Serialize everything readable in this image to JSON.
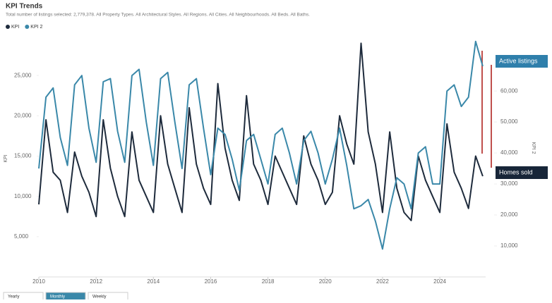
{
  "chart_data": {
    "type": "line",
    "title": "KPI Trends",
    "subtitle": "Total number of listings selected: 2,779,378. All Property Types. All Architectural Styles. All Regions. All Cities. All Neighbourhoods. All Beds. All Baths.",
    "y_label": "KPI",
    "y2_label": "KPI 2",
    "x": [
      2010,
      2010.25,
      2010.5,
      2010.75,
      2011,
      2011.25,
      2011.5,
      2011.75,
      2012,
      2012.25,
      2012.5,
      2012.75,
      2013,
      2013.25,
      2013.5,
      2013.75,
      2014,
      2014.25,
      2014.5,
      2014.75,
      2015,
      2015.25,
      2015.5,
      2015.75,
      2016,
      2016.25,
      2016.5,
      2016.75,
      2017,
      2017.25,
      2017.5,
      2017.75,
      2018,
      2018.25,
      2018.5,
      2018.75,
      2019,
      2019.25,
      2019.5,
      2019.75,
      2020,
      2020.25,
      2020.5,
      2020.75,
      2021,
      2021.25,
      2021.5,
      2021.75,
      2022,
      2022.25,
      2022.5,
      2022.75,
      2023,
      2023.25,
      2023.5,
      2023.75,
      2024,
      2024.25,
      2024.5,
      2024.75,
      2025,
      2025.25,
      2025.5
    ],
    "series": [
      {
        "name": "KPI",
        "color": "#1e2b3c",
        "axis": "y",
        "values": [
          9000,
          19500,
          13000,
          12000,
          8000,
          15500,
          12500,
          10500,
          7500,
          19500,
          13500,
          10000,
          7500,
          18000,
          12000,
          10000,
          8000,
          20000,
          14000,
          11000,
          8000,
          21000,
          14000,
          11000,
          9000,
          24000,
          16000,
          12000,
          9500,
          22500,
          14000,
          12000,
          9000,
          15000,
          13000,
          11000,
          9000,
          17500,
          14000,
          12000,
          9000,
          10500,
          20000,
          16500,
          14000,
          29000,
          18000,
          14000,
          8000,
          18000,
          11000,
          8000,
          7000,
          15000,
          12000,
          10000,
          8000,
          19000,
          13000,
          11000,
          8500,
          15000,
          12500
        ]
      },
      {
        "name": "KPI 2",
        "color": "#3a88a9",
        "axis": "y2",
        "values": [
          35000,
          58000,
          61000,
          45000,
          36000,
          62000,
          65000,
          48000,
          37000,
          63000,
          64000,
          47000,
          37000,
          65000,
          67000,
          50000,
          36000,
          64000,
          66000,
          50000,
          35000,
          62000,
          64000,
          48000,
          33000,
          48000,
          46000,
          38000,
          28000,
          44000,
          46000,
          38000,
          30000,
          46000,
          48000,
          40000,
          30000,
          44000,
          47000,
          40000,
          30000,
          38000,
          48000,
          36000,
          22000,
          23000,
          25000,
          18000,
          9000,
          22000,
          32000,
          30000,
          22000,
          40000,
          42000,
          30000,
          30000,
          60000,
          62000,
          55000,
          58000,
          76000,
          68000
        ]
      }
    ],
    "xlim": [
      2010,
      2025.6
    ],
    "xticks": [
      2010,
      2012,
      2014,
      2016,
      2018,
      2020,
      2022,
      2024
    ],
    "ylim": [
      0,
      30000
    ],
    "yticks": [
      {
        "value": 5000,
        "label": "5,000"
      },
      {
        "value": 10000,
        "label": "10,000"
      },
      {
        "value": 15000,
        "label": "15,000"
      },
      {
        "value": 20000,
        "label": "20,000"
      },
      {
        "value": 25000,
        "label": "25,000"
      }
    ],
    "y2lim": [
      0,
      78000
    ],
    "y2ticks": [
      {
        "value": 10000,
        "label": "10,000"
      },
      {
        "value": 20000,
        "label": "20,000"
      },
      {
        "value": 30000,
        "label": "30,000"
      },
      {
        "value": 40000,
        "label": "40,000"
      },
      {
        "value": 50000,
        "label": "50,000"
      },
      {
        "value": 60000,
        "label": "60,000"
      }
    ],
    "annotations": [
      "Active listings",
      "Homes sold"
    ],
    "controls": [
      "Yearly",
      "Monthly",
      "Weekly"
    ]
  }
}
